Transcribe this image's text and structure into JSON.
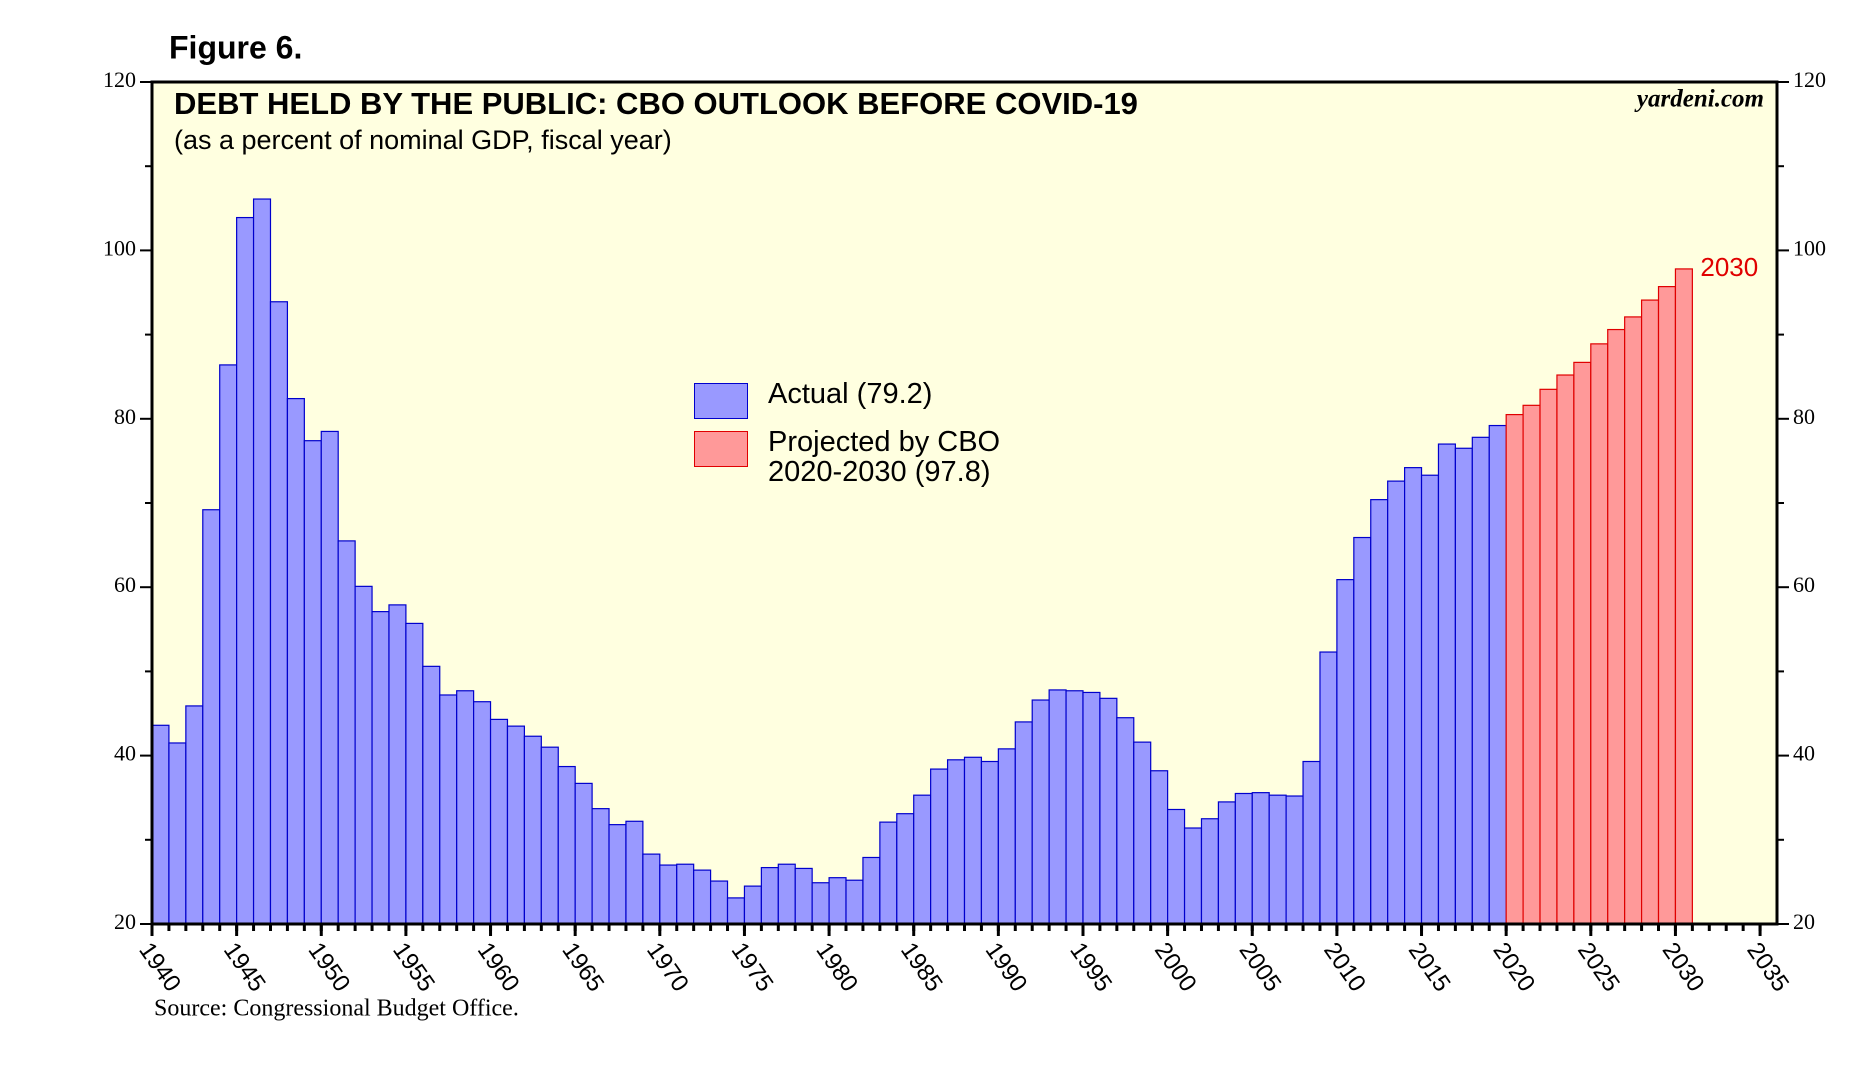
{
  "figure_label": "Figure 6.",
  "chart_data": {
    "type": "bar",
    "title": "DEBT HELD BY THE PUBLIC: CBO OUTLOOK BEFORE COVID-19",
    "subtitle": "(as a percent of nominal GDP, fiscal year)",
    "watermark": "yardeni.com",
    "source": "Source: Congressional Budget Office.",
    "annotation": {
      "text": "2030",
      "color": "#e00000"
    },
    "x": [
      1940,
      1941,
      1942,
      1943,
      1944,
      1945,
      1946,
      1947,
      1948,
      1949,
      1950,
      1951,
      1952,
      1953,
      1954,
      1955,
      1956,
      1957,
      1958,
      1959,
      1960,
      1961,
      1962,
      1963,
      1964,
      1965,
      1966,
      1967,
      1968,
      1969,
      1970,
      1971,
      1972,
      1973,
      1974,
      1975,
      1976,
      1977,
      1978,
      1979,
      1980,
      1981,
      1982,
      1983,
      1984,
      1985,
      1986,
      1987,
      1988,
      1989,
      1990,
      1991,
      1992,
      1993,
      1994,
      1995,
      1996,
      1997,
      1998,
      1999,
      2000,
      2001,
      2002,
      2003,
      2004,
      2005,
      2006,
      2007,
      2008,
      2009,
      2010,
      2011,
      2012,
      2013,
      2014,
      2015,
      2016,
      2017,
      2018,
      2019,
      2020,
      2021,
      2022,
      2023,
      2024,
      2025,
      2026,
      2027,
      2028,
      2029,
      2030
    ],
    "series": [
      {
        "name": "Actual (79.2)",
        "color": "#9999ff",
        "edge": "#0000cc",
        "values": [
          43.6,
          41.5,
          45.9,
          69.2,
          86.4,
          103.9,
          106.1,
          93.9,
          82.4,
          77.4,
          78.5,
          65.5,
          60.1,
          57.1,
          57.9,
          55.7,
          50.6,
          47.2,
          47.7,
          46.4,
          44.3,
          43.5,
          42.3,
          41.0,
          38.7,
          36.7,
          33.7,
          31.8,
          32.2,
          28.3,
          27.0,
          27.1,
          26.4,
          25.1,
          23.1,
          24.5,
          26.7,
          27.1,
          26.6,
          24.9,
          25.5,
          25.2,
          27.9,
          32.1,
          33.1,
          35.3,
          38.4,
          39.5,
          39.8,
          39.3,
          40.8,
          44.0,
          46.6,
          47.8,
          47.7,
          47.5,
          46.8,
          44.5,
          41.6,
          38.2,
          33.6,
          31.4,
          32.5,
          34.5,
          35.5,
          35.6,
          35.3,
          35.2,
          39.3,
          52.3,
          60.9,
          65.9,
          70.4,
          72.6,
          74.2,
          73.3,
          77.0,
          76.5,
          77.8,
          79.2,
          null,
          null,
          null,
          null,
          null,
          null,
          null,
          null,
          null,
          null,
          null
        ]
      },
      {
        "name": "Projected by CBO\n2020-2030 (97.8)",
        "color": "#ff9999",
        "edge": "#e00000",
        "values": [
          null,
          null,
          null,
          null,
          null,
          null,
          null,
          null,
          null,
          null,
          null,
          null,
          null,
          null,
          null,
          null,
          null,
          null,
          null,
          null,
          null,
          null,
          null,
          null,
          null,
          null,
          null,
          null,
          null,
          null,
          null,
          null,
          null,
          null,
          null,
          null,
          null,
          null,
          null,
          null,
          null,
          null,
          null,
          null,
          null,
          null,
          null,
          null,
          null,
          null,
          null,
          null,
          null,
          null,
          null,
          null,
          null,
          null,
          null,
          null,
          null,
          null,
          null,
          null,
          null,
          null,
          null,
          null,
          null,
          null,
          null,
          null,
          null,
          null,
          null,
          null,
          null,
          null,
          null,
          null,
          80.5,
          81.6,
          83.5,
          85.2,
          86.7,
          88.9,
          90.6,
          92.1,
          94.1,
          95.7,
          97.8
        ]
      }
    ],
    "xlim": [
      1940,
      2036
    ],
    "xticks": [
      1940,
      1945,
      1950,
      1955,
      1960,
      1965,
      1970,
      1975,
      1980,
      1985,
      1990,
      1995,
      2000,
      2005,
      2010,
      2015,
      2020,
      2025,
      2030,
      2035
    ],
    "ylim": [
      20,
      120
    ],
    "yticks": [
      20,
      40,
      60,
      80,
      100,
      120
    ],
    "y2lim": [
      20,
      120
    ],
    "y2ticks": [
      20,
      40,
      60,
      80,
      100,
      120
    ],
    "background": "#ffffe0",
    "grid": false
  }
}
